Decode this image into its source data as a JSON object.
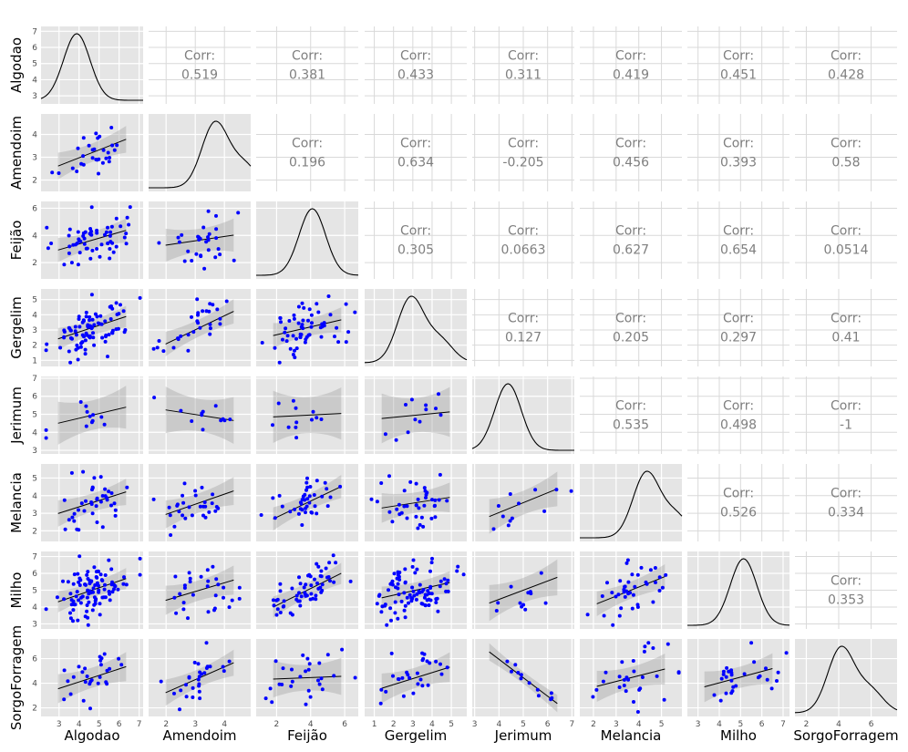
{
  "chart_data": {
    "type": "scatter",
    "title": "",
    "variables": [
      "Algodao",
      "Amendoim",
      "Feijão",
      "Gergelim",
      "Jerimum",
      "Melancia",
      "Milho",
      "SorgoForragem"
    ],
    "corr_label": "Corr:",
    "correlations": [
      [
        "",
        "0.519",
        "0.381",
        "0.433",
        "0.311",
        "0.419",
        "0.451",
        "0.428"
      ],
      [
        "",
        "",
        "0.196",
        "0.634",
        "-0.205",
        "0.456",
        "0.393",
        "0.58"
      ],
      [
        "",
        "",
        "",
        "0.305",
        "0.0663",
        "0.627",
        "0.654",
        "0.0514"
      ],
      [
        "",
        "",
        "",
        "",
        "0.127",
        "0.205",
        "0.297",
        "0.41"
      ],
      [
        "",
        "",
        "",
        "",
        "",
        "0.535",
        "0.498",
        "-1"
      ],
      [
        "",
        "",
        "",
        "",
        "",
        "",
        "0.526",
        "0.334"
      ],
      [
        "",
        "",
        "",
        "",
        "",
        "",
        "",
        "0.353"
      ],
      [
        "",
        "",
        "",
        "",
        "",
        "",
        "",
        ""
      ]
    ],
    "x_ranges": [
      [
        2.1,
        7.2
      ],
      [
        1.4,
        4.9
      ],
      [
        0.8,
        6.8
      ],
      [
        0.5,
        5.8
      ],
      [
        2.9,
        7.1
      ],
      [
        1.4,
        5.9
      ],
      [
        2.5,
        7.3
      ],
      [
        1.3,
        7.6
      ]
    ],
    "y_ranges": [
      [
        2.5,
        7.3
      ],
      [
        1.5,
        4.9
      ],
      [
        0.8,
        6.5
      ],
      [
        0.6,
        5.7
      ],
      [
        2.8,
        7.1
      ],
      [
        1.4,
        5.8
      ],
      [
        2.7,
        7.3
      ],
      [
        1.3,
        7.6
      ]
    ],
    "x_ticks": [
      [
        "3",
        "4",
        "5",
        "6",
        "7"
      ],
      [
        "2",
        "3",
        "4"
      ],
      [
        "2",
        "4",
        "6"
      ],
      [
        "1",
        "2",
        "3",
        "4",
        "5"
      ],
      [
        "3",
        "4",
        "5",
        "6",
        "7"
      ],
      [
        "2",
        "3",
        "4",
        "5"
      ],
      [
        "3",
        "4",
        "5",
        "6",
        "7"
      ],
      [
        "2",
        "4",
        "6"
      ]
    ],
    "y_ticks": [
      [
        "3",
        "4",
        "5",
        "6",
        "7"
      ],
      [
        "2",
        "3",
        "4"
      ],
      [
        "2",
        "4",
        "6"
      ],
      [
        "1",
        "2",
        "3",
        "4",
        "5"
      ],
      [
        "3",
        "4",
        "5",
        "6",
        "7"
      ],
      [
        "2",
        "3",
        "4",
        "5"
      ],
      [
        "3",
        "4",
        "5",
        "6",
        "7"
      ],
      [
        "2",
        "4",
        "6"
      ]
    ],
    "point_color": "#0000ff",
    "panel_background": "#e5e5e5",
    "grid_color": "#ffffff",
    "band_color": "#999999",
    "line_color": "#000000",
    "grid": true
  }
}
